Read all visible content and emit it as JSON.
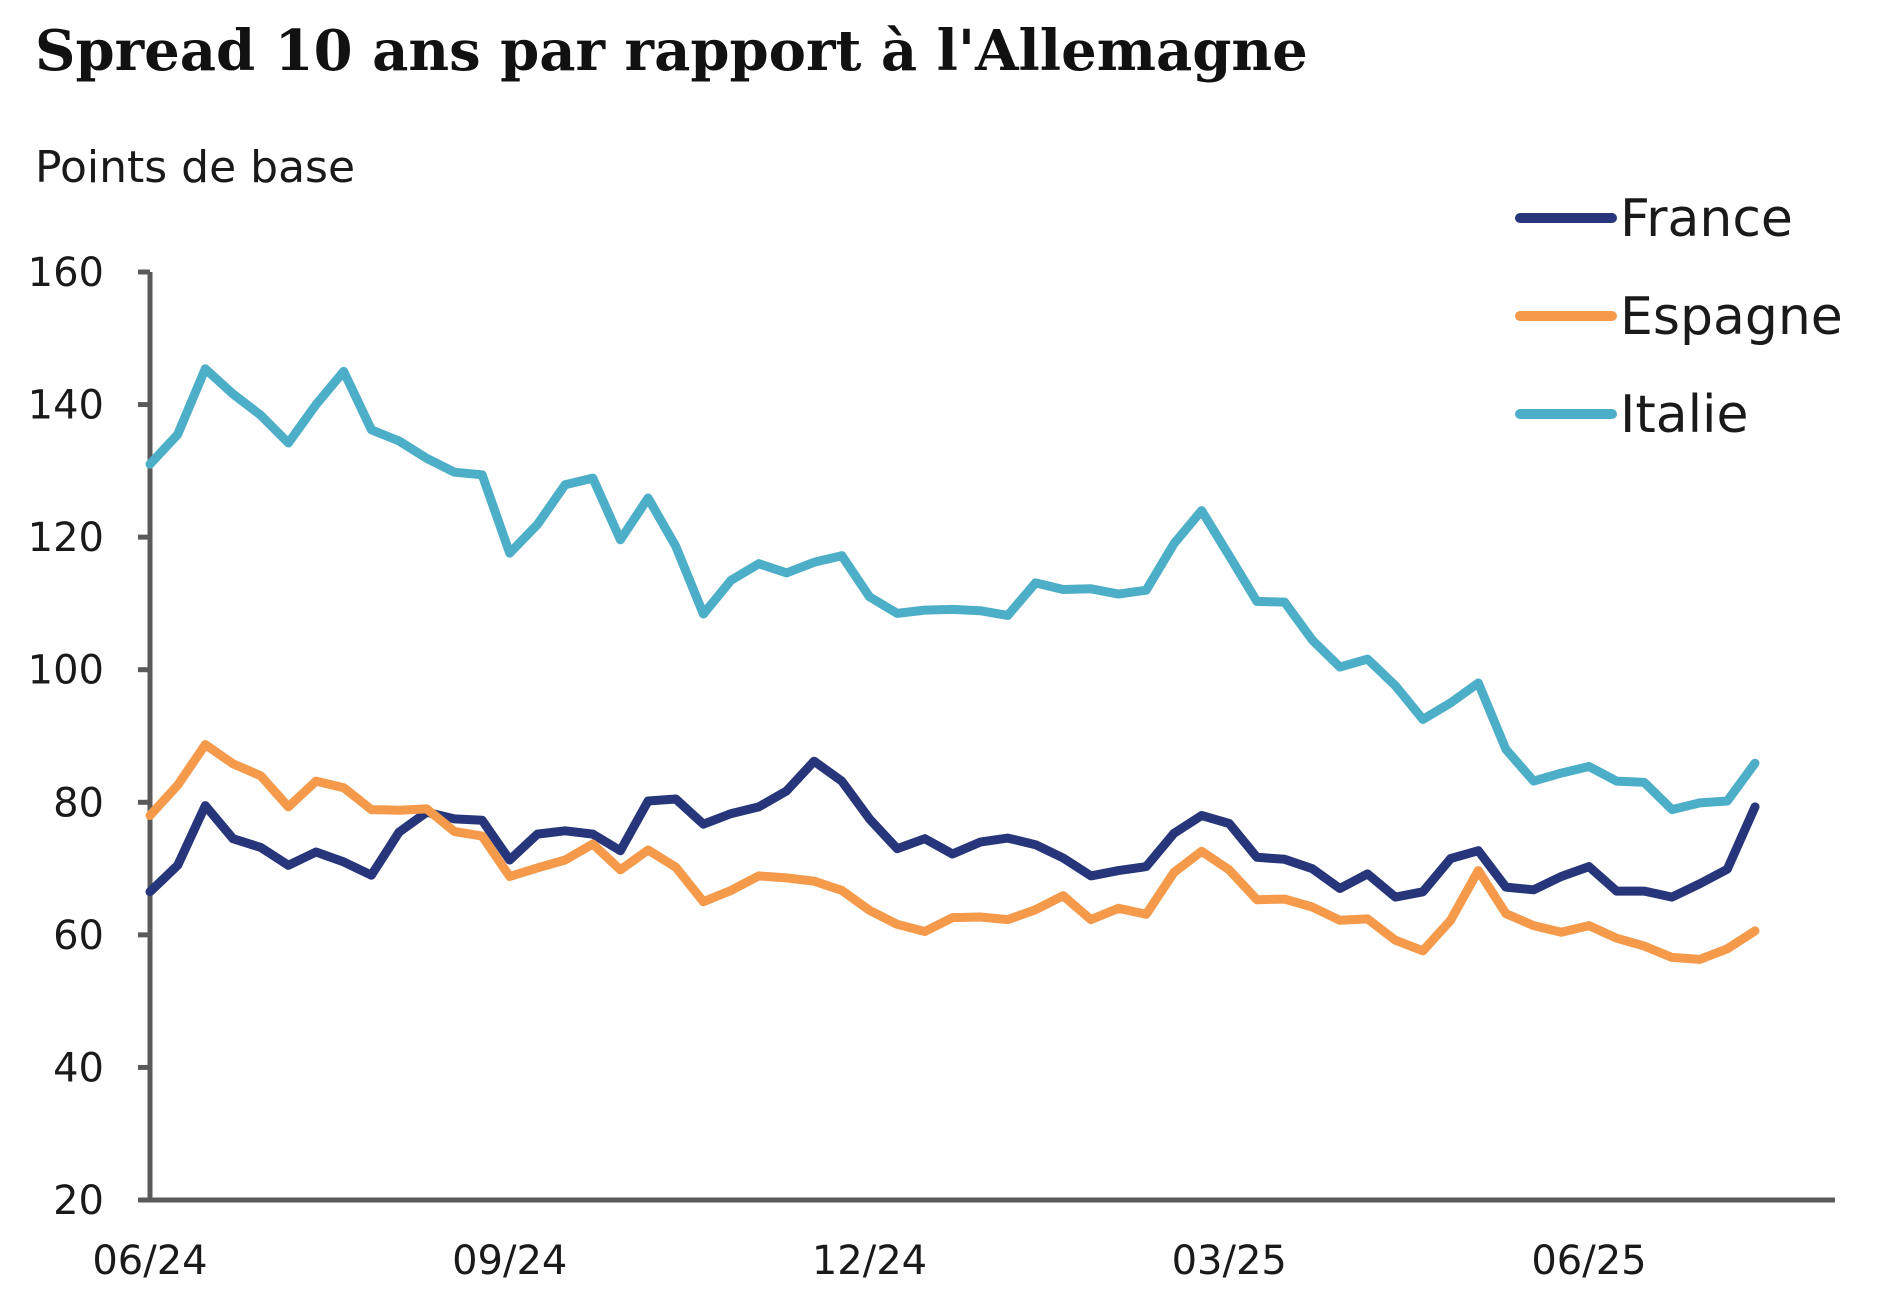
{
  "chart_data": {
    "type": "line",
    "title": "Spread 10 ans par rapport à l'Allemagne",
    "ylabel": "Points de base",
    "xlabel": "",
    "ylim": [
      20,
      160
    ],
    "yticks": [
      "20",
      "40",
      "60",
      "80",
      "100",
      "120",
      "140",
      "160"
    ],
    "xticks": [
      {
        "label": "06/24",
        "index": 0
      },
      {
        "label": "09/24",
        "index": 13
      },
      {
        "label": "12/24",
        "index": 26
      },
      {
        "label": "03/25",
        "index": 39
      },
      {
        "label": "06/25",
        "index": 52
      }
    ],
    "legend_position": "top-right",
    "grid": false,
    "series": [
      {
        "name": "France",
        "color": "#27367a",
        "values": [
          66.5,
          70.5,
          79.5,
          74.5,
          73.2,
          70.5,
          72.5,
          71,
          69,
          75.5,
          78.5,
          77.5,
          77.3,
          71.3,
          75.2,
          75.7,
          75.2,
          72.7,
          80.2,
          80.5,
          76.7,
          78.3,
          79.3,
          81.7,
          86.2,
          83.2,
          77.5,
          73,
          74.5,
          72.2,
          74,
          74.6,
          73.6,
          71.6,
          68.9,
          69.7,
          70.3,
          75.3,
          78,
          76.8,
          71.7,
          71.4,
          70,
          67,
          69.2,
          65.7,
          66.5,
          71.5,
          72.7,
          67.2,
          66.8,
          68.8,
          70.3,
          66.6,
          66.6,
          65.7,
          67.7,
          69.9,
          79.3
        ]
      },
      {
        "name": "Espagne",
        "color": "#f59a4a",
        "values": [
          78,
          82.6,
          88.7,
          85.8,
          84,
          79.3,
          83.2,
          82.2,
          78.9,
          78.8,
          79,
          75.6,
          74.9,
          68.8,
          70.1,
          71.3,
          73.7,
          69.8,
          72.8,
          70.2,
          65,
          66.7,
          68.9,
          68.6,
          68.1,
          66.7,
          63.7,
          61.6,
          60.5,
          62.6,
          62.7,
          62.3,
          63.8,
          65.9,
          62.3,
          64,
          63.1,
          69.4,
          72.6,
          69.8,
          65.3,
          65.4,
          64.2,
          62.2,
          62.4,
          59.2,
          57.6,
          62.2,
          69.7,
          63.2,
          61.4,
          60.4,
          61.4,
          59.5,
          58.3,
          56.6,
          56.3,
          57.9,
          60.6
        ]
      },
      {
        "name": "Italie",
        "color": "#4daec8",
        "values": [
          131,
          135.5,
          145.4,
          141.6,
          138.4,
          134.2,
          140,
          145,
          136.2,
          134.5,
          131.9,
          129.8,
          129.4,
          117.6,
          121.9,
          127.9,
          128.9,
          119.6,
          125.9,
          118.6,
          108.4,
          113.5,
          116,
          114.6,
          116.2,
          117.2,
          111,
          108.5,
          109,
          109.1,
          108.9,
          108.2,
          113.1,
          112.1,
          112.2,
          111.4,
          112,
          119,
          124,
          117.2,
          110.3,
          110.2,
          104.5,
          100.4,
          101.6,
          97.6,
          92.5,
          95,
          98,
          88,
          83.2,
          84.4,
          85.4,
          83.2,
          83,
          78.9,
          79.9,
          80.2,
          85.9
        ]
      }
    ]
  }
}
